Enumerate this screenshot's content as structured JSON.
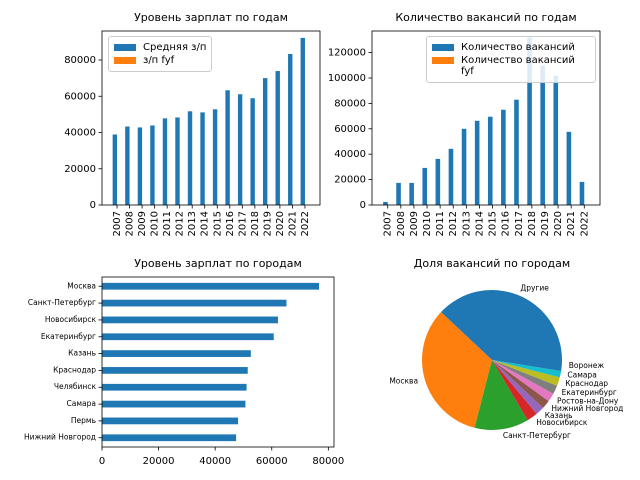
{
  "chart_data": [
    {
      "type": "bar",
      "title": "Уровень зарплат по годам",
      "categories": [
        "2007",
        "2008",
        "2009",
        "2010",
        "2011",
        "2012",
        "2013",
        "2014",
        "2015",
        "2016",
        "2017",
        "2018",
        "2019",
        "2020",
        "2021",
        "2022"
      ],
      "series": [
        {
          "name": "Средняя з/п",
          "color": "#1f77b4",
          "values": [
            38900,
            43300,
            42800,
            43900,
            47800,
            48300,
            51700,
            51100,
            52800,
            63300,
            61100,
            58900,
            70000,
            73900,
            83300,
            92200
          ]
        },
        {
          "name": "з/п fyf",
          "color": "#ff7f0e",
          "values": [
            0,
            0,
            0,
            0,
            0,
            0,
            0,
            0,
            0,
            0,
            0,
            0,
            0,
            0,
            0,
            0
          ]
        }
      ],
      "ylim": [
        0,
        96000
      ],
      "yticks": [
        0,
        20000,
        40000,
        60000,
        80000
      ],
      "legend": "upper left"
    },
    {
      "type": "bar",
      "title": "Количество вакансий по годам",
      "categories": [
        "2007",
        "2008",
        "2009",
        "2010",
        "2011",
        "2012",
        "2013",
        "2014",
        "2015",
        "2016",
        "2017",
        "2018",
        "2019",
        "2020",
        "2021",
        "2022"
      ],
      "series": [
        {
          "name": "Количество вакансий",
          "color": "#1f77b4",
          "values": [
            2400,
            17400,
            17400,
            29200,
            36300,
            44200,
            60000,
            66300,
            69500,
            75000,
            82900,
            131800,
            109700,
            101800,
            57600,
            18200
          ]
        },
        {
          "name": "Количество вакансий fyf",
          "color": "#ff7f0e",
          "values": [
            0,
            0,
            0,
            0,
            0,
            0,
            0,
            0,
            0,
            0,
            0,
            0,
            0,
            0,
            0,
            0
          ]
        }
      ],
      "ylim": [
        0,
        137000
      ],
      "yticks": [
        0,
        20000,
        40000,
        60000,
        80000,
        100000,
        120000
      ],
      "legend": "upper right"
    },
    {
      "type": "barh",
      "title": "Уровень зарплат по городам",
      "categories": [
        "Москва",
        "Санкт-Петербург",
        "Новосибирск",
        "Екатеринбург",
        "Казань",
        "Краснодар",
        "Челябинск",
        "Самара",
        "Пермь",
        "Нижний Новгород"
      ],
      "values": [
        76700,
        65200,
        62200,
        60700,
        52600,
        51500,
        51100,
        50700,
        48100,
        47400
      ],
      "color": "#1f77b4",
      "xlim": [
        0,
        82000
      ],
      "xticks": [
        0,
        20000,
        40000,
        60000,
        80000
      ]
    },
    {
      "type": "pie",
      "title": "Доля вакансий по городам",
      "categories": [
        "Другие",
        "Москва",
        "Санкт-Петербург",
        "Новосибирск",
        "Казань",
        "Нижний Новгород",
        "Ростов-на-Дону",
        "Екатеринбург",
        "Краснодар",
        "Самара",
        "Воронеж"
      ],
      "values": [
        38,
        33,
        12.5,
        2.5,
        2,
        2,
        2,
        2,
        2,
        1.5,
        2.5
      ],
      "colors": [
        "#1f77b4",
        "#ff7f0e",
        "#2ca02c",
        "#d62728",
        "#9467bd",
        "#8c564b",
        "#e377c2",
        "#7f7f7f",
        "#bcbd22",
        "#17becf",
        "#1f77b4"
      ]
    }
  ]
}
